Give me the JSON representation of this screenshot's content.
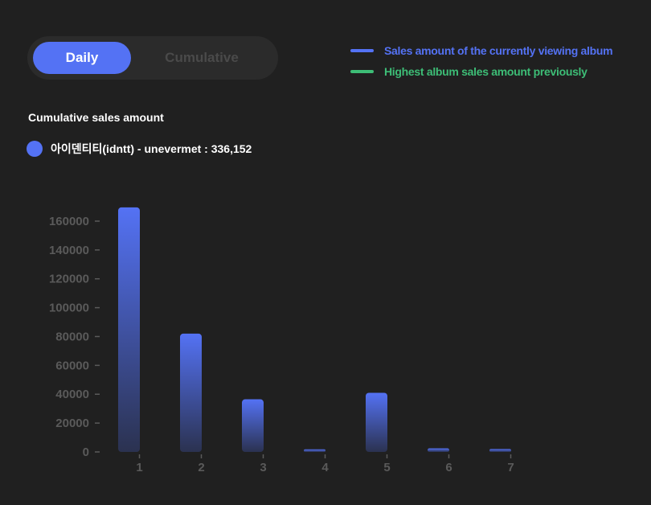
{
  "toggle": {
    "active_label": "Daily",
    "inactive_label": "Cumulative"
  },
  "legend": {
    "items": [
      {
        "label": "Sales amount of the currently viewing album",
        "color": "#5472f4"
      },
      {
        "label": "Highest album sales amount previously",
        "color": "#3dbd76"
      }
    ]
  },
  "section": {
    "title": "Cumulative sales amount"
  },
  "album": {
    "text": "아이덴티티(idntt) - unevermet : 336,152",
    "color": "#5472f4"
  },
  "chart_data": {
    "type": "bar",
    "categories": [
      "1",
      "2",
      "3",
      "4",
      "5",
      "6",
      "7"
    ],
    "values": [
      169500,
      82000,
      36500,
      1800,
      41000,
      2500,
      2000
    ],
    "ylim": [
      0,
      170000
    ],
    "yticks": [
      "0",
      "20000",
      "40000",
      "60000",
      "80000",
      "100000",
      "120000",
      "140000",
      "160000"
    ],
    "grid": false,
    "bar_color_top": "#5472f4",
    "bar_color_bottom": "#2b3250"
  }
}
